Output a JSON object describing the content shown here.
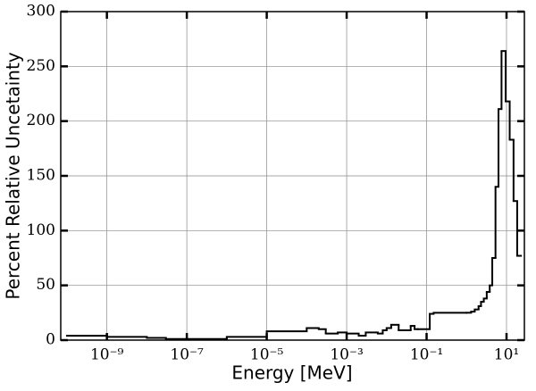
{
  "chart_data": {
    "type": "histogram",
    "xlabel": "Energy [MeV]",
    "ylabel": "Percent Relative Uncetainty",
    "bins": [
      1e-10,
      1e-09,
      1e-08,
      3e-08,
      1e-07,
      1e-06,
      1e-05,
      0.0001,
      0.0002,
      0.0003,
      0.0006,
      0.001,
      0.002,
      0.003,
      0.006,
      0.008,
      0.01,
      0.013,
      0.02,
      0.04,
      0.05,
      0.06,
      0.12,
      0.15,
      1,
      1.3,
      1.6,
      2,
      2.3,
      2.7,
      3.2,
      3.8,
      4.4,
      5.3,
      6.3,
      7.5,
      9.5,
      12,
      15,
      18.5,
      23
    ],
    "values": [
      4,
      3,
      2,
      1,
      1,
      3,
      8,
      11,
      10,
      6,
      7,
      6,
      4,
      7,
      6,
      9,
      11,
      14,
      9,
      13,
      10,
      10,
      24,
      25,
      25,
      26,
      28,
      31,
      35,
      38,
      44,
      50,
      75,
      140,
      211,
      264,
      218,
      183,
      127,
      77
    ],
    "color": "#000000",
    "xscale": "log",
    "xlim": [
      7e-11,
      28
    ],
    "xticks": [
      {
        "value": 1e-09,
        "label": "10⁻⁹"
      },
      {
        "value": 1e-07,
        "label": "10⁻⁷"
      },
      {
        "value": 1e-05,
        "label": "10⁻⁵"
      },
      {
        "value": 0.001,
        "label": "10⁻³"
      },
      {
        "value": 0.1,
        "label": "10⁻¹"
      },
      {
        "value": 10,
        "label": "10¹"
      }
    ],
    "ylim": [
      0,
      300
    ],
    "yticks": [
      0,
      50,
      100,
      150,
      200,
      250,
      300
    ],
    "grid": true
  }
}
